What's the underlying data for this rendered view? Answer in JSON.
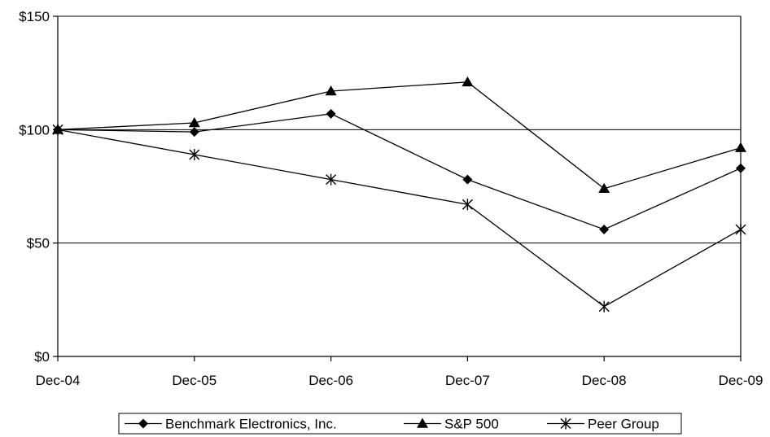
{
  "chart_data": {
    "type": "line",
    "title": "",
    "xlabel": "",
    "ylabel": "",
    "categories": [
      "Dec-04",
      "Dec-05",
      "Dec-06",
      "Dec-07",
      "Dec-08",
      "Dec-09"
    ],
    "y_ticks": [
      "$0",
      "$50",
      "$100",
      "$150"
    ],
    "y_tick_values": [
      0,
      50,
      100,
      150
    ],
    "ylim": [
      0,
      150
    ],
    "grid": "horizontal at 50 and 100",
    "legend_position": "bottom",
    "series": [
      {
        "name": "Benchmark Electronics, Inc.",
        "marker": "diamond",
        "values": [
          100,
          99,
          107,
          78,
          56,
          83
        ]
      },
      {
        "name": "S&P 500",
        "marker": "triangle",
        "values": [
          100,
          103,
          117,
          121,
          74,
          92
        ]
      },
      {
        "name": "Peer Group",
        "marker": "asterisk",
        "values": [
          100,
          89,
          78,
          67,
          22,
          56
        ]
      }
    ]
  }
}
